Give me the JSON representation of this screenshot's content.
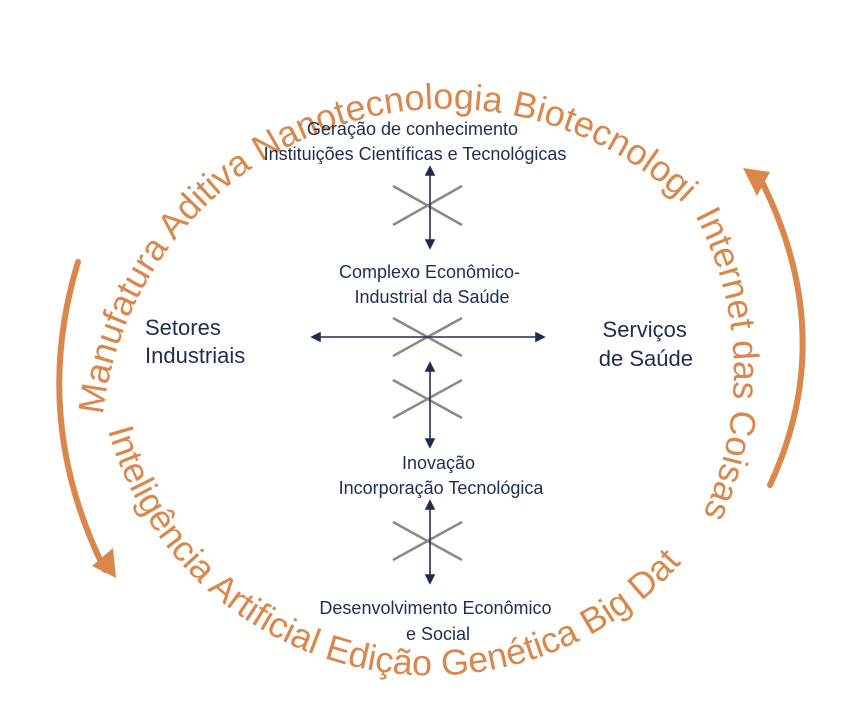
{
  "colors": {
    "ring": "#d9874a",
    "text": "#1f2d4f",
    "cross": "#8a8a8a",
    "arrow": "#1f2d4f"
  },
  "ring": {
    "top_text": "Manufatura Aditiva Nanotecnologia Biotecnologia",
    "right_text": "Internet das Coisas",
    "bottom_text": "Inteligência Artificial Edição Genética Big Data"
  },
  "nodes": {
    "knowledge": {
      "line1": "Geração de conhecimento",
      "line2": "Instituições Científicas e Tecnológicas"
    },
    "complex": {
      "line1": "Complexo Econômico-",
      "line2": "Industrial da Saúde"
    },
    "innovation": {
      "line1": "Inovação",
      "line2": "Incorporação Tecnológica"
    },
    "development": {
      "line1": "Desenvolvimento Econômico",
      "line2": "e Social"
    },
    "industrial": {
      "line1": "Setores",
      "line2": "Industriais"
    },
    "health_services": {
      "line1": "Serviços",
      "line2": "de Saúde"
    }
  }
}
